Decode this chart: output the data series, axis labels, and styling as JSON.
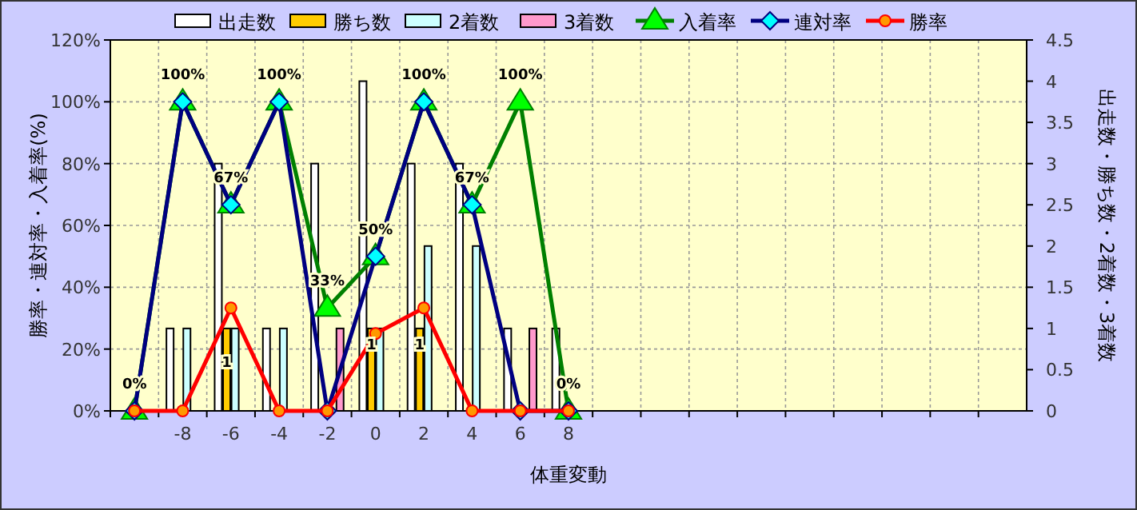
{
  "chart_data": {
    "type": "bar",
    "xlabel": "体重変動",
    "ylabel": "勝率・連対率・入着率(%)",
    "y2label": "出走数・勝ち数・2着数・3着数",
    "categories": [
      null,
      "-8",
      "-6",
      "-4",
      "-2",
      "0",
      "2",
      "4",
      "6",
      "8",
      null,
      null,
      null,
      null,
      null,
      null,
      null,
      null,
      null
    ],
    "series": [
      {
        "name": "出走数",
        "type": "bar",
        "axis": "y2",
        "color": "#ffffff",
        "values": [
          0,
          1,
          3,
          1,
          3,
          4,
          3,
          3,
          1,
          1,
          null,
          null,
          null,
          null,
          null,
          null,
          null,
          null,
          null
        ]
      },
      {
        "name": "勝ち数",
        "type": "bar",
        "axis": "y2",
        "color": "#ffcc00",
        "values": [
          0,
          0,
          1,
          0,
          0,
          1,
          1,
          0,
          0,
          0,
          null,
          null,
          null,
          null,
          null,
          null,
          null,
          null,
          null
        ],
        "value_labels": [
          null,
          null,
          "1",
          null,
          null,
          "1",
          "1",
          null,
          null,
          null,
          null,
          null,
          null,
          null,
          null,
          null,
          null,
          null,
          null
        ]
      },
      {
        "name": "2着数",
        "type": "bar",
        "axis": "y2",
        "color": "#ccffff",
        "values": [
          0,
          1,
          1,
          1,
          0,
          1,
          2,
          2,
          0,
          0,
          null,
          null,
          null,
          null,
          null,
          null,
          null,
          null,
          null
        ]
      },
      {
        "name": "3着数",
        "type": "bar",
        "axis": "y2",
        "color": "#ff99cc",
        "values": [
          0,
          0,
          0,
          0,
          1,
          0,
          0,
          0,
          1,
          0,
          null,
          null,
          null,
          null,
          null,
          null,
          null,
          null,
          null
        ]
      },
      {
        "name": "入着率",
        "type": "line",
        "marker": "triangle",
        "color": "#008000",
        "values": [
          0,
          100,
          66.7,
          100,
          33.3,
          50,
          100,
          66.7,
          100,
          0,
          null,
          null,
          null,
          null,
          null,
          null,
          null,
          null,
          null
        ],
        "value_labels": [
          "0%",
          "100%",
          "67%",
          "100%",
          "33%",
          "50%",
          "100%",
          "67%",
          "100%",
          "0%",
          null,
          null,
          null,
          null,
          null,
          null,
          null,
          null,
          null
        ]
      },
      {
        "name": "連対率",
        "type": "line",
        "marker": "diamond",
        "color": "#000080",
        "values": [
          0,
          100,
          66.7,
          100,
          0,
          50,
          100,
          66.7,
          0,
          0,
          null,
          null,
          null,
          null,
          null,
          null,
          null,
          null,
          null
        ]
      },
      {
        "name": "勝率",
        "type": "line",
        "marker": "circle",
        "color": "#ff0000",
        "values": [
          0,
          0,
          33.3,
          0,
          0,
          25,
          33.3,
          0,
          0,
          0,
          null,
          null,
          null,
          null,
          null,
          null,
          null,
          null,
          null
        ]
      }
    ],
    "ylim": [
      0,
      120
    ],
    "yticks": [
      {
        "value": 0,
        "label": "0%"
      },
      {
        "value": 20,
        "label": "20%"
      },
      {
        "value": 40,
        "label": "40%"
      },
      {
        "value": 60,
        "label": "60%"
      },
      {
        "value": 80,
        "label": "80%"
      },
      {
        "value": 100,
        "label": "100%"
      },
      {
        "value": 120,
        "label": "120%"
      }
    ],
    "y2lim": [
      0,
      4.5
    ],
    "y2ticks": [
      0,
      0.5,
      1,
      1.5,
      2,
      2.5,
      3,
      3.5,
      4,
      4.5
    ],
    "grid": true,
    "legend": "top"
  }
}
